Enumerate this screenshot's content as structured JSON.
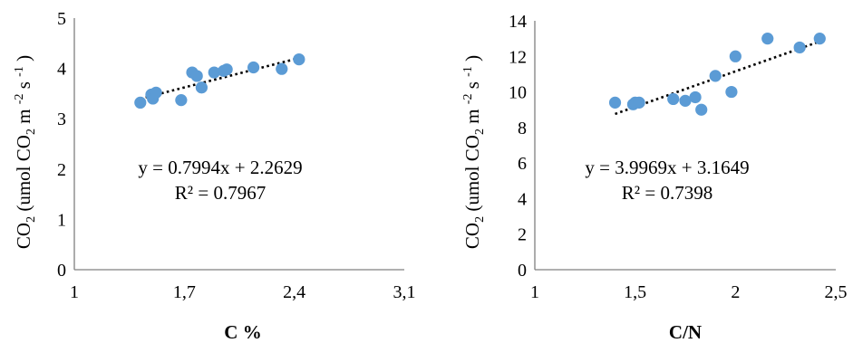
{
  "colors": {
    "point": "#5B9BD5",
    "axis": "#808080",
    "trend": "#000000",
    "text": "#000000"
  },
  "chart_data": [
    {
      "type": "scatter",
      "xlabel": "C %",
      "ylabel": "CO 2 (umol CO 2 m -2 s -1 )",
      "xlim": [
        1,
        3.1
      ],
      "ylim": [
        0,
        5
      ],
      "x_ticks": [
        1,
        1.7,
        2.4,
        3.1
      ],
      "x_tick_labels": [
        "1",
        "1,7",
        "2,4",
        "3,1"
      ],
      "y_ticks": [
        0,
        1,
        2,
        3,
        4,
        5
      ],
      "y_tick_labels": [
        "0",
        "1",
        "2",
        "3",
        "4",
        "5"
      ],
      "grid": false,
      "legend": "none",
      "trendline": {
        "style": "dotted",
        "slope": 0.7994,
        "intercept": 2.2629,
        "x_range": [
          1.42,
          2.42
        ]
      },
      "equation": "y = 0.7994x + 2.2629",
      "r2_label": "R² = 0.7967",
      "series": [
        {
          "x": [
            1.42,
            1.49,
            1.5,
            1.52,
            1.68,
            1.75,
            1.78,
            1.81,
            1.89,
            1.95,
            1.97,
            2.14,
            2.32,
            2.43
          ],
          "y": [
            3.32,
            3.48,
            3.4,
            3.52,
            3.37,
            3.92,
            3.85,
            3.62,
            3.92,
            3.95,
            3.98,
            4.02,
            3.99,
            4.18
          ]
        }
      ]
    },
    {
      "type": "scatter",
      "xlabel": "C/N",
      "ylabel": "CO 2 (umol CO 2 m -2 s -1 )",
      "xlim": [
        1,
        2.5
      ],
      "ylim": [
        0,
        14
      ],
      "x_ticks": [
        1,
        1.5,
        2,
        2.5
      ],
      "x_tick_labels": [
        "1",
        "1,5",
        "2",
        "2,5"
      ],
      "y_ticks": [
        0,
        2,
        4,
        6,
        8,
        10,
        12,
        14
      ],
      "y_tick_labels": [
        "0",
        "2",
        "4",
        "6",
        "8",
        "10",
        "12",
        "14"
      ],
      "grid": false,
      "legend": "none",
      "trendline": {
        "style": "dotted",
        "slope": 3.9969,
        "intercept": 3.1649,
        "x_range": [
          1.4,
          2.42
        ]
      },
      "equation": "y = 3.9969x + 3.1649",
      "r2_label": "R² = 0.7398",
      "series": [
        {
          "x": [
            1.4,
            1.49,
            1.5,
            1.52,
            1.69,
            1.75,
            1.8,
            1.83,
            1.9,
            1.98,
            2.0,
            2.16,
            2.32,
            2.42
          ],
          "y": [
            9.4,
            9.3,
            9.4,
            9.4,
            9.6,
            9.5,
            9.7,
            9.0,
            10.9,
            10.0,
            12.0,
            13.0,
            12.5,
            13.0
          ]
        }
      ]
    }
  ]
}
